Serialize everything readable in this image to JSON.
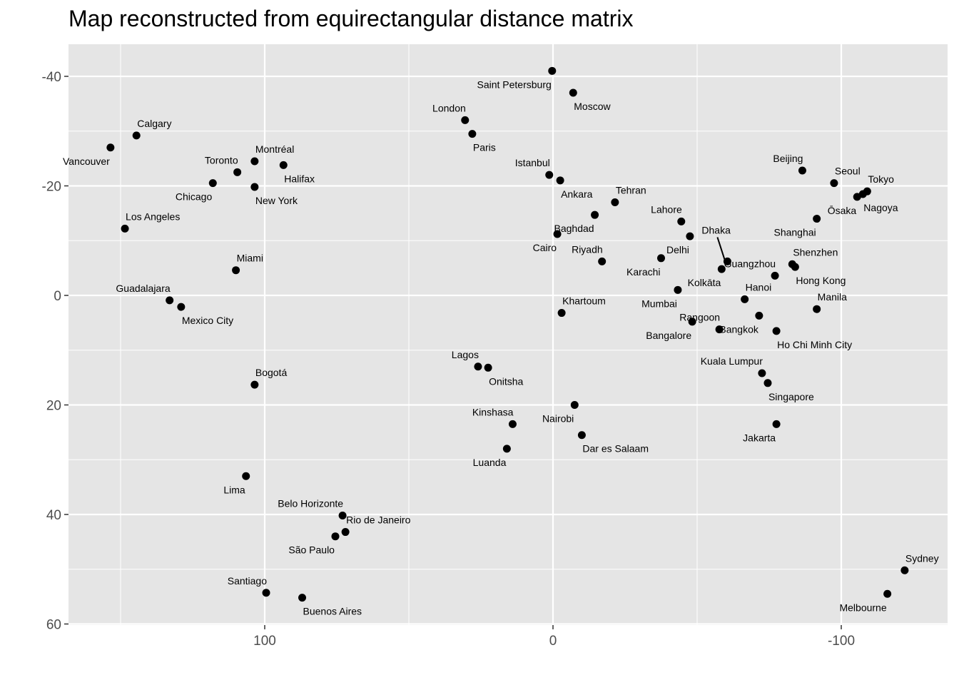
{
  "chart_data": {
    "type": "scatter",
    "title": "Map reconstructed from equirectangular distance matrix",
    "xlabel": "",
    "ylabel": "",
    "x_reversed": true,
    "y_reversed": true,
    "xlim": [
      168,
      -135
    ],
    "ylim": [
      -45,
      60
    ],
    "x_ticks": [
      100,
      0,
      -100
    ],
    "x_tick_labels": [
      "100",
      "0",
      "-100"
    ],
    "y_ticks": [
      -40,
      -20,
      0,
      20,
      40,
      60
    ],
    "y_tick_labels": [
      "-40",
      "-20",
      "0",
      "20",
      "40",
      "60"
    ],
    "grid": true,
    "colors": {
      "panel": "#e5e5e5",
      "grid": "#ffffff",
      "point": "#000000",
      "tick": "#4d4d4d"
    },
    "points": [
      {
        "name": "Saint Petersburg",
        "x": 0.3,
        "y": -41.0,
        "label_pos": "below-left"
      },
      {
        "name": "Moscow",
        "x": -7.0,
        "y": -37.0,
        "label_pos": "below-right"
      },
      {
        "name": "London",
        "x": 30.5,
        "y": -32.0,
        "label_pos": "above-left"
      },
      {
        "name": "Paris",
        "x": 28.0,
        "y": -29.5,
        "label_pos": "below-right"
      },
      {
        "name": "Istanbul",
        "x": 1.3,
        "y": -22.0,
        "label_pos": "above-left"
      },
      {
        "name": "Ankara",
        "x": -2.5,
        "y": -21.0,
        "label_pos": "below-right"
      },
      {
        "name": "Tehran",
        "x": -21.5,
        "y": -17.0,
        "label_pos": "above-right"
      },
      {
        "name": "Baghdad",
        "x": -14.5,
        "y": -14.7,
        "label_pos": "below-left"
      },
      {
        "name": "Cairo",
        "x": -1.5,
        "y": -11.2,
        "label_pos": "below-left"
      },
      {
        "name": "Riyadh",
        "x": -17.0,
        "y": -6.2,
        "label_pos": "above-left"
      },
      {
        "name": "Lahore",
        "x": -44.5,
        "y": -13.5,
        "label_pos": "above-left"
      },
      {
        "name": "Delhi",
        "x": -47.5,
        "y": -10.8,
        "label_pos": "below-left"
      },
      {
        "name": "Karachi",
        "x": -37.5,
        "y": -6.8,
        "label_pos": "below-left"
      },
      {
        "name": "Dhaka",
        "x": -60.5,
        "y": -6.2,
        "label_pos": "dhaka"
      },
      {
        "name": "Kolkāta",
        "x": -58.5,
        "y": -4.8,
        "label_pos": "below-left"
      },
      {
        "name": "Mumbai",
        "x": -43.3,
        "y": -1.0,
        "label_pos": "below-left"
      },
      {
        "name": "Bangalore",
        "x": -48.3,
        "y": 4.8,
        "label_pos": "below-left"
      },
      {
        "name": "Khartoum",
        "x": -3.0,
        "y": 3.2,
        "label_pos": "above-right"
      },
      {
        "name": "Beijing",
        "x": -86.5,
        "y": -22.8,
        "label_pos": "above-left"
      },
      {
        "name": "Seoul",
        "x": -97.5,
        "y": -20.5,
        "label_pos": "above-right"
      },
      {
        "name": "Tokyo",
        "x": -109.0,
        "y": -19.0,
        "label_pos": "above-right"
      },
      {
        "name": "Nagoya",
        "x": -107.5,
        "y": -18.5,
        "label_pos": "below-right"
      },
      {
        "name": "Ōsaka",
        "x": -105.5,
        "y": -18.0,
        "label_pos": "below-left"
      },
      {
        "name": "Shanghai",
        "x": -91.5,
        "y": -14.0,
        "label_pos": "below-left"
      },
      {
        "name": "Guangzhou",
        "x": -77.0,
        "y": -3.6,
        "label_pos": "above-left"
      },
      {
        "name": "Shenzhen",
        "x": -83.0,
        "y": -5.7,
        "label_pos": "above-right"
      },
      {
        "name": "Hong Kong",
        "x": -84.0,
        "y": -5.2,
        "label_pos": "below-right"
      },
      {
        "name": "Hanoi",
        "x": -66.5,
        "y": 0.7,
        "label_pos": "above-right"
      },
      {
        "name": "Bangkok",
        "x": -71.5,
        "y": 3.7,
        "label_pos": "below-left"
      },
      {
        "name": "Ho Chi Minh City",
        "x": -77.5,
        "y": 6.5,
        "label_pos": "below-right"
      },
      {
        "name": "Manila",
        "x": -91.5,
        "y": 2.5,
        "label_pos": "above-right"
      },
      {
        "name": "Rangoon",
        "x": -57.7,
        "y": 6.2,
        "label_pos": "above-left"
      },
      {
        "name": "Kuala Lumpur",
        "x": -72.5,
        "y": 14.2,
        "label_pos": "above-left"
      },
      {
        "name": "Singapore",
        "x": -74.5,
        "y": 16.0,
        "label_pos": "below-right"
      },
      {
        "name": "Jakarta",
        "x": -77.5,
        "y": 23.5,
        "label_pos": "below-left"
      },
      {
        "name": "Sydney",
        "x": -122.0,
        "y": 50.2,
        "label_pos": "above-right"
      },
      {
        "name": "Melbourne",
        "x": -116.0,
        "y": 54.5,
        "label_pos": "below-left"
      },
      {
        "name": "Lagos",
        "x": 26.0,
        "y": 13.0,
        "label_pos": "above-left"
      },
      {
        "name": "Onitsha",
        "x": 22.5,
        "y": 13.2,
        "label_pos": "below-right"
      },
      {
        "name": "Kinshasa",
        "x": 14.0,
        "y": 23.5,
        "label_pos": "above-left"
      },
      {
        "name": "Luanda",
        "x": 16.0,
        "y": 28.0,
        "label_pos": "below-left"
      },
      {
        "name": "Nairobi",
        "x": -7.5,
        "y": 20.0,
        "label_pos": "below-left"
      },
      {
        "name": "Dar es Salaam",
        "x": -10.0,
        "y": 25.5,
        "label_pos": "below-right"
      },
      {
        "name": "Vancouver",
        "x": 153.5,
        "y": -27.0,
        "label_pos": "below-left"
      },
      {
        "name": "Calgary",
        "x": 144.5,
        "y": -29.2,
        "label_pos": "above-right"
      },
      {
        "name": "Toronto",
        "x": 109.5,
        "y": -22.5,
        "label_pos": "above-left"
      },
      {
        "name": "Montréal",
        "x": 103.5,
        "y": -24.5,
        "label_pos": "above-right"
      },
      {
        "name": "Halifax",
        "x": 93.5,
        "y": -23.8,
        "label_pos": "below-right"
      },
      {
        "name": "Chicago",
        "x": 118.0,
        "y": -20.5,
        "label_pos": "below-left"
      },
      {
        "name": "New York",
        "x": 103.5,
        "y": -19.8,
        "label_pos": "below-right"
      },
      {
        "name": "Los Angeles",
        "x": 148.5,
        "y": -12.2,
        "label_pos": "above-right"
      },
      {
        "name": "Miami",
        "x": 110.0,
        "y": -4.6,
        "label_pos": "above-right"
      },
      {
        "name": "Guadalajara",
        "x": 133.0,
        "y": 0.9,
        "label_pos": "above-left"
      },
      {
        "name": "Mexico City",
        "x": 129.0,
        "y": 2.1,
        "label_pos": "below-right"
      },
      {
        "name": "Bogotá",
        "x": 103.5,
        "y": 16.3,
        "label_pos": "above-right"
      },
      {
        "name": "Lima",
        "x": 106.5,
        "y": 33.0,
        "label_pos": "below-left"
      },
      {
        "name": "Belo Horizonte",
        "x": 73.0,
        "y": 40.2,
        "label_pos": "above-left"
      },
      {
        "name": "Rio de Janeiro",
        "x": 72.0,
        "y": 43.2,
        "label_pos": "above-right"
      },
      {
        "name": "São Paulo",
        "x": 75.5,
        "y": 44.0,
        "label_pos": "below-left"
      },
      {
        "name": "Santiago",
        "x": 99.5,
        "y": 54.3,
        "label_pos": "above-left"
      },
      {
        "name": "Buenos Aires",
        "x": 87.0,
        "y": 55.2,
        "label_pos": "below-right"
      }
    ]
  }
}
